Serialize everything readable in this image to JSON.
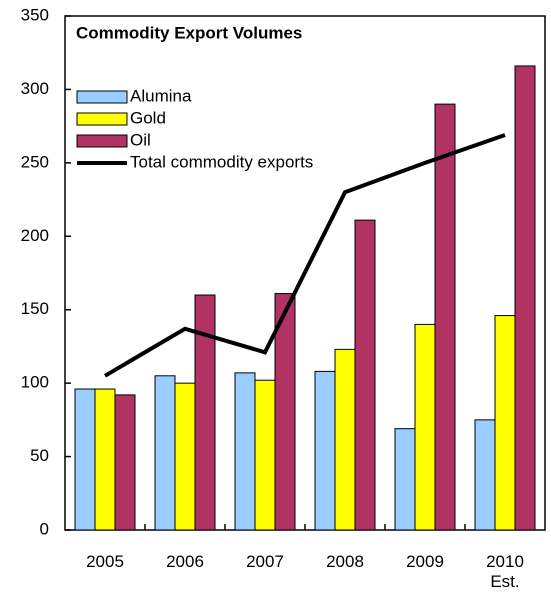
{
  "chart_data": {
    "type": "bar",
    "title": "Commodity Export Volumes",
    "categories": [
      "2005",
      "2006",
      "2007",
      "2008",
      "2009",
      "2010\nEst."
    ],
    "series": [
      {
        "name": "Alumina",
        "color": "#99ccff",
        "values": [
          96,
          105,
          107,
          108,
          69,
          75
        ]
      },
      {
        "name": "Gold",
        "color": "#ffff00",
        "values": [
          96,
          100,
          102,
          123,
          140,
          146
        ]
      },
      {
        "name": "Oil",
        "color": "#b03363",
        "values": [
          92,
          160,
          161,
          211,
          290,
          316
        ]
      },
      {
        "name": "Total commodity exports",
        "type": "line",
        "color": "#000000",
        "values": [
          105,
          137,
          121,
          230,
          250,
          269
        ]
      }
    ],
    "ylim": [
      0,
      350
    ],
    "yticks": [
      0,
      50,
      100,
      150,
      200,
      250,
      300,
      350
    ],
    "grid": false,
    "legend": "upper left"
  }
}
